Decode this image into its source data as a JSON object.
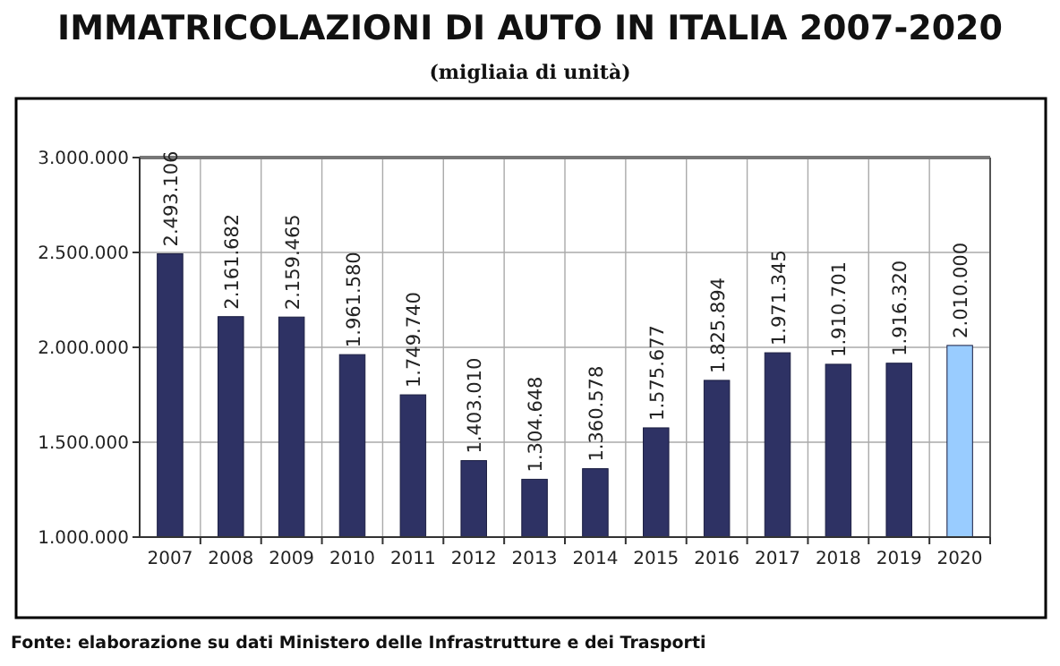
{
  "chart_data": {
    "type": "bar",
    "title": "IMMATRICOLAZIONI DI AUTO IN ITALIA 2007-2020",
    "subtitle": "(migliaia di unità)",
    "categories": [
      "2007",
      "2008",
      "2009",
      "2010",
      "2011",
      "2012",
      "2013",
      "2014",
      "2015",
      "2016",
      "2017",
      "2018",
      "2019",
      "2020"
    ],
    "values": [
      2493106,
      2161682,
      2159465,
      1961580,
      1749740,
      1403010,
      1304648,
      1360578,
      1575677,
      1825894,
      1971345,
      1910701,
      1916320,
      2010000
    ],
    "colors": [
      "#2e3264",
      "#2e3264",
      "#2e3264",
      "#2e3264",
      "#2e3264",
      "#2e3264",
      "#2e3264",
      "#2e3264",
      "#2e3264",
      "#2e3264",
      "#2e3264",
      "#2e3264",
      "#2e3264",
      "#99ccff"
    ],
    "value_labels": [
      "2.493.106",
      "2.161.682",
      "2.159.465",
      "1.961.580",
      "1.749.740",
      "1.403.010",
      "1.304.648",
      "1.360.578",
      "1.575.677",
      "1.825.894",
      "1.971.345",
      "1.910.701",
      "1.916.320",
      "2.010.000"
    ],
    "ylim": [
      1000000,
      3000000
    ],
    "yticks": [
      {
        "value": 1000000,
        "label": "1.000.000"
      },
      {
        "value": 1500000,
        "label": "1.500.000"
      },
      {
        "value": 2000000,
        "label": "2.000.000"
      },
      {
        "value": 2500000,
        "label": "2.500.000"
      },
      {
        "value": 3000000,
        "label": "3.000.000"
      }
    ],
    "grid": true,
    "annotations": [
      "Fonte: elaborazione su dati Ministero delle Infrastrutture e dei Trasporti"
    ]
  }
}
